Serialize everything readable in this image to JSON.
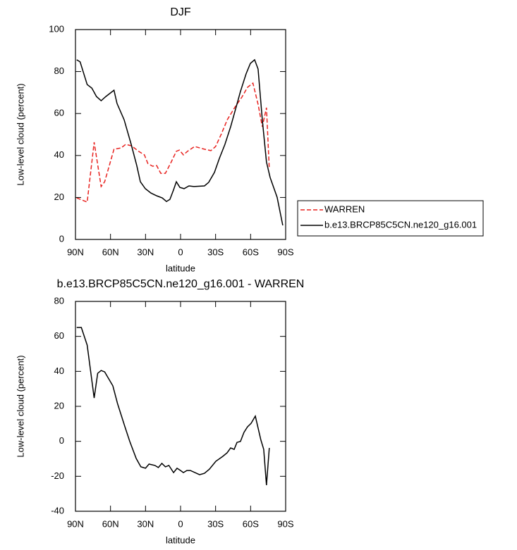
{
  "chart_data": [
    {
      "type": "line",
      "title": "DJF",
      "xlabel": "latitude",
      "ylabel": "Low-level cloud (percent)",
      "xlim": [
        90,
        -90
      ],
      "xticks": [
        {
          "value": 90,
          "label": "90N"
        },
        {
          "value": 60,
          "label": "60N"
        },
        {
          "value": 30,
          "label": "30N"
        },
        0,
        {
          "value": -30,
          "label": "30S"
        },
        {
          "value": -60,
          "label": "60S"
        },
        {
          "value": -90,
          "label": "90S"
        }
      ],
      "ylim": [
        0,
        100
      ],
      "yticks": [
        0,
        20,
        40,
        60,
        80,
        100
      ],
      "legend": "right",
      "series": [
        {
          "name": "WARREN",
          "color": "#e8221f",
          "linestyle": "dashed",
          "x": [
            89,
            80,
            74,
            68,
            65,
            57,
            51,
            47,
            42,
            36,
            31,
            28,
            24,
            20.5,
            17,
            13,
            8,
            3.6,
            1,
            -2.4,
            -6,
            -12,
            -20.5,
            -26,
            -30,
            -35,
            -40,
            -46.5,
            -52.5,
            -57.3,
            -62,
            -66.4,
            -70,
            -73.6,
            -76
          ],
          "values": [
            19.8,
            17.8,
            46.3,
            25.2,
            27.5,
            43,
            43.6,
            45.3,
            44.6,
            42,
            40.3,
            36.2,
            34.9,
            35.2,
            31.5,
            31.5,
            36.9,
            42,
            42.6,
            40.3,
            42,
            44.3,
            43,
            42.3,
            44.3,
            50.3,
            57,
            63,
            67.8,
            72.5,
            74.5,
            64.4,
            53.7,
            62.8,
            33.6
          ]
        },
        {
          "name": "b.e13.BRCP85C5CN.ne120_g16.001",
          "color": "#000000",
          "linestyle": "solid",
          "x": [
            89,
            86,
            80,
            76,
            72,
            68,
            64,
            57,
            54.4,
            48.3,
            42.3,
            37.5,
            34.4,
            30.2,
            25.4,
            20.5,
            15.7,
            12.1,
            9.1,
            6.1,
            3.6,
            0.6,
            -3,
            -7.2,
            -11.4,
            -20.5,
            -24.1,
            -29,
            -33.2,
            -38,
            -42.9,
            -47.1,
            -51.3,
            -56.1,
            -59.8,
            -63.4,
            -66.4,
            -70,
            -73.6,
            -76.7,
            -82.7,
            -87.5
          ],
          "values": [
            85.6,
            84.6,
            73.8,
            72.1,
            68.1,
            66.1,
            68.1,
            71.1,
            64.8,
            57,
            45.3,
            35.2,
            27.5,
            24.2,
            22.1,
            20.8,
            19.8,
            18.1,
            19.1,
            23.5,
            27.5,
            24.8,
            24.2,
            25.5,
            25.2,
            25.5,
            27.2,
            31.9,
            38.6,
            45.3,
            53.7,
            62.1,
            70.5,
            78.9,
            83.9,
            85.6,
            81.2,
            57,
            36.9,
            29.5,
            20.1,
            6.7
          ]
        }
      ]
    },
    {
      "type": "line",
      "title": "b.e13.BRCP85C5CN.ne120_g16.001 - WARREN",
      "xlabel": "latitude",
      "ylabel": "Low-level cloud (percent)",
      "xlim": [
        90,
        -90
      ],
      "xticks": [
        {
          "value": 90,
          "label": "90N"
        },
        {
          "value": 60,
          "label": "60N"
        },
        {
          "value": 30,
          "label": "30N"
        },
        0,
        {
          "value": -30,
          "label": "30S"
        },
        {
          "value": -60,
          "label": "60S"
        },
        {
          "value": -90,
          "label": "90S"
        }
      ],
      "ylim": [
        -40,
        80
      ],
      "yticks": [
        -40,
        -20,
        0,
        20,
        40,
        60,
        80
      ],
      "series": [
        {
          "color": "#000000",
          "linestyle": "solid",
          "x": [
            89,
            85,
            80,
            74,
            71,
            68,
            65,
            58,
            54,
            48,
            43.5,
            38,
            34,
            30,
            27,
            22,
            19,
            16,
            13,
            10,
            6,
            3,
            0,
            -2.4,
            -5.4,
            -8.4,
            -16.3,
            -20.5,
            -24.7,
            -30.2,
            -36.2,
            -39.8,
            -42.9,
            -45.9,
            -48.3,
            -51.3,
            -54.3,
            -57.3,
            -60.4,
            -64,
            -68.8,
            -71.2,
            -73.6,
            -76
          ],
          "values": [
            65.1,
            65.1,
            55,
            24.8,
            38.9,
            40.5,
            39.7,
            31.7,
            21.6,
            9.1,
            -0.1,
            -9.8,
            -14.6,
            -15.4,
            -13,
            -13.8,
            -15,
            -12.6,
            -14.6,
            -13.8,
            -17.9,
            -15.4,
            -16.7,
            -17.9,
            -16.7,
            -16.7,
            -19.1,
            -18.3,
            -15.9,
            -11.4,
            -8.6,
            -6.6,
            -3.8,
            -4.6,
            -0.6,
            -0.1,
            5.1,
            8.3,
            10.3,
            14.4,
            0.7,
            -4.6,
            -25.1,
            -3.8
          ]
        }
      ]
    }
  ]
}
